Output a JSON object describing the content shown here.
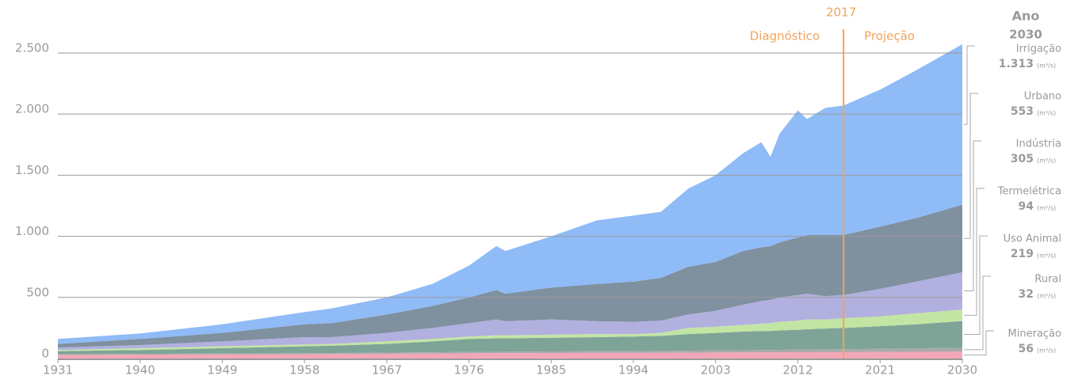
{
  "chart_data": {
    "type": "stacked-area",
    "x": [
      1931,
      1940,
      1949,
      1958,
      1961,
      1967,
      1972,
      1976,
      1979,
      1980,
      1985,
      1990,
      1994,
      1997,
      2000,
      2003,
      2006,
      2008,
      2009,
      2010,
      2012,
      2013,
      2015,
      2017,
      2021,
      2025,
      2030
    ],
    "series": [
      {
        "name": "Mineração",
        "color": "#f2a7b8",
        "end_label": "56",
        "values": [
          30,
          32,
          34,
          36,
          37,
          39,
          41,
          43,
          44,
          44,
          45,
          46,
          46,
          47,
          48,
          49,
          50,
          51,
          51,
          51,
          52,
          52,
          53,
          53,
          54,
          55,
          56
        ]
      },
      {
        "name": "Rural",
        "color": "#a9a9a9",
        "end_label": "32",
        "values": [
          5,
          6,
          7,
          8,
          8,
          9,
          10,
          11,
          12,
          12,
          13,
          14,
          15,
          15,
          16,
          17,
          18,
          19,
          19,
          20,
          21,
          21,
          22,
          23,
          25,
          28,
          32
        ]
      },
      {
        "name": "Uso Animal",
        "color": "#7ea497",
        "end_label": "219",
        "values": [
          25,
          32,
          44,
          56,
          60,
          72,
          89,
          106,
          109,
          109,
          112,
          115,
          119,
          123,
          136,
          144,
          152,
          155,
          155,
          159,
          162,
          167,
          170,
          174,
          186,
          197,
          219
        ]
      },
      {
        "name": "Termelétrica",
        "color": "#c3e5a3",
        "end_label": "94",
        "values": [
          10,
          15,
          15,
          15,
          15,
          20,
          20,
          20,
          25,
          25,
          25,
          25,
          20,
          25,
          50,
          50,
          55,
          60,
          65,
          70,
          75,
          80,
          75,
          80,
          80,
          90,
          94
        ]
      },
      {
        "name": "Indústria",
        "color": "#b1b0df",
        "end_label": "305",
        "values": [
          20,
          25,
          40,
          60,
          55,
          70,
          90,
          110,
          130,
          115,
          125,
          105,
          100,
          100,
          110,
          130,
          165,
          185,
          190,
          200,
          210,
          210,
          190,
          190,
          225,
          260,
          305
        ]
      },
      {
        "name": "Urbano",
        "color": "#7f909f",
        "end_label": "553",
        "values": [
          30,
          50,
          70,
          105,
          115,
          150,
          180,
          210,
          240,
          225,
          260,
          305,
          330,
          350,
          390,
          400,
          440,
          440,
          440,
          450,
          470,
          480,
          500,
          490,
          510,
          520,
          553
        ]
      },
      {
        "name": "Irrigação",
        "color": "#8fbbf7",
        "end_label": "1.313",
        "values": [
          40,
          45,
          70,
          100,
          120,
          140,
          180,
          260,
          360,
          350,
          420,
          520,
          540,
          540,
          640,
          710,
          800,
          860,
          730,
          890,
          1040,
          950,
          1040,
          1060,
          1120,
          1210,
          1313
        ]
      }
    ],
    "unit": "(m³/s)",
    "legend_title": [
      "Ano",
      "2030"
    ],
    "marker": {
      "x": 2017,
      "left": "Diagnóstico",
      "right": "Projeção",
      "color": "#f2a35a"
    },
    "xlim": [
      1931,
      2030
    ],
    "xticks": [
      1931,
      1940,
      1949,
      1958,
      1967,
      1976,
      1985,
      1994,
      2003,
      2012,
      2021,
      2030
    ],
    "ylim": [
      0,
      2600
    ],
    "yticks": [
      0,
      500,
      {
        "value": 1000,
        "label": "1.000"
      },
      {
        "value": 1500,
        "label": "1.500"
      },
      {
        "value": 2000,
        "label": "2.000"
      },
      {
        "value": 2500,
        "label": "2.500"
      }
    ],
    "grid": true
  }
}
